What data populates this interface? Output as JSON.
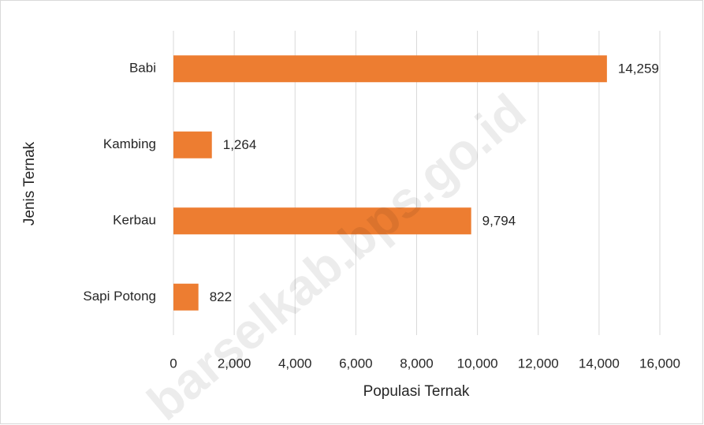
{
  "chart_data": {
    "type": "barh",
    "categories": [
      "Babi",
      "Kambing",
      "Kerbau",
      "Sapi Potong"
    ],
    "values": [
      14259,
      1264,
      9794,
      822
    ],
    "value_labels": [
      "14,259",
      "1,264",
      "9,794",
      "822"
    ],
    "color": "#ed7d31",
    "xlabel": "Populasi Ternak",
    "ylabel": "Jenis Ternak",
    "xlim": [
      0,
      16000
    ],
    "xticks": [
      0,
      {
        "value": 2000,
        "label": "2,000"
      },
      {
        "value": 4000,
        "label": "4,000"
      },
      {
        "value": 6000,
        "label": "6,000"
      },
      {
        "value": 8000,
        "label": "8,000"
      },
      {
        "value": 10000,
        "label": "10,000"
      },
      {
        "value": 12000,
        "label": "12,000"
      },
      {
        "value": 14000,
        "label": "14,000"
      },
      {
        "value": 16000,
        "label": "16,000"
      }
    ],
    "grid": true,
    "watermark": "barselkab.bps.go.id"
  }
}
